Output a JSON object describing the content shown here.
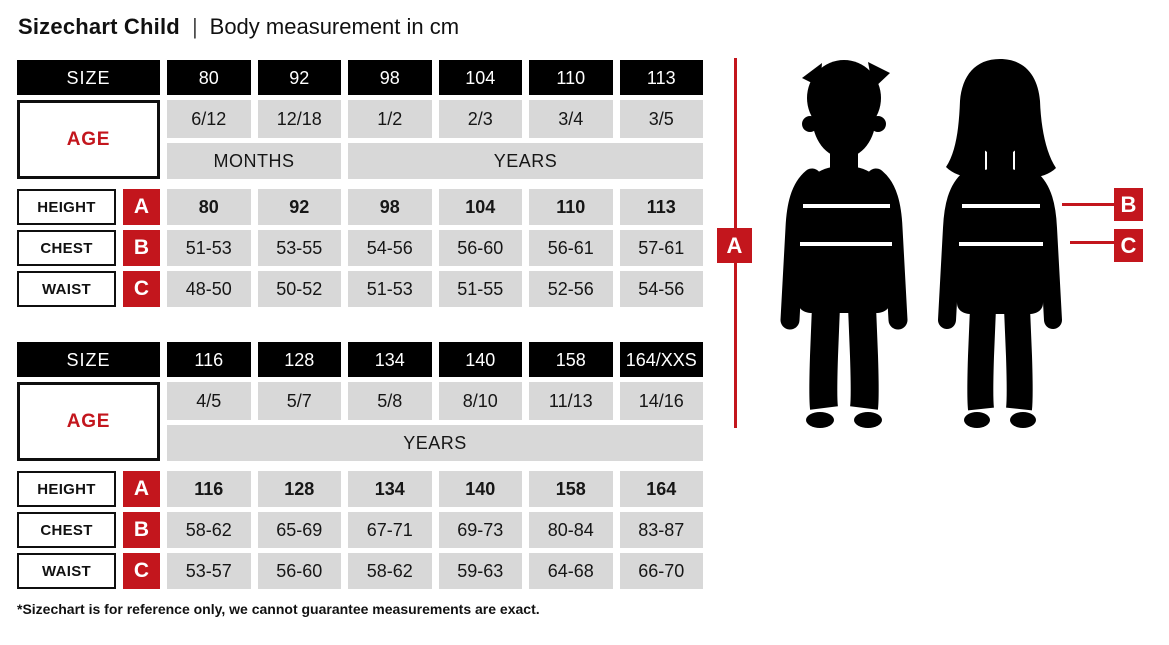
{
  "header": {
    "title": "Sizechart Child",
    "separator": "|",
    "subtitle": "Body measurement in cm"
  },
  "chart_data": {
    "type": "table",
    "tables": [
      {
        "size_label": "SIZE",
        "age_label": "AGE",
        "sizes": [
          "80",
          "92",
          "98",
          "104",
          "110",
          "113"
        ],
        "ages": [
          "6/12",
          "12/18",
          "1/2",
          "2/3",
          "3/4",
          "3/5"
        ],
        "period_labels": [
          {
            "label": "MONTHS",
            "span": 2
          },
          {
            "label": "YEARS",
            "span": 4
          }
        ],
        "rows": [
          {
            "label": "HEIGHT",
            "letter": "A",
            "bold": true,
            "values": [
              "80",
              "92",
              "98",
              "104",
              "110",
              "113"
            ]
          },
          {
            "label": "CHEST",
            "letter": "B",
            "bold": false,
            "values": [
              "51-53",
              "53-55",
              "54-56",
              "56-60",
              "56-61",
              "57-61"
            ]
          },
          {
            "label": "WAIST",
            "letter": "C",
            "bold": false,
            "values": [
              "48-50",
              "50-52",
              "51-53",
              "51-55",
              "52-56",
              "54-56"
            ]
          }
        ]
      },
      {
        "size_label": "SIZE",
        "age_label": "AGE",
        "sizes": [
          "116",
          "128",
          "134",
          "140",
          "158",
          "164/XXS"
        ],
        "ages": [
          "4/5",
          "5/7",
          "5/8",
          "8/10",
          "11/13",
          "14/16"
        ],
        "period_labels": [
          {
            "label": "YEARS",
            "span": 6
          }
        ],
        "rows": [
          {
            "label": "HEIGHT",
            "letter": "A",
            "bold": true,
            "values": [
              "116",
              "128",
              "134",
              "140",
              "158",
              "164"
            ]
          },
          {
            "label": "CHEST",
            "letter": "B",
            "bold": false,
            "values": [
              "58-62",
              "65-69",
              "67-71",
              "69-73",
              "80-84",
              "83-87"
            ]
          },
          {
            "label": "WAIST",
            "letter": "C",
            "bold": false,
            "values": [
              "53-57",
              "56-60",
              "58-62",
              "59-63",
              "64-68",
              "66-70"
            ]
          }
        ]
      }
    ]
  },
  "figure": {
    "marker_a": "A",
    "marker_b": "B",
    "marker_c": "C"
  },
  "footnote": "*Sizechart is for reference only, we cannot guarantee measurements are exact.",
  "colors": {
    "accent_red": "#c3161d",
    "cell_gray": "#d8d8d8",
    "header_black": "#000000"
  }
}
